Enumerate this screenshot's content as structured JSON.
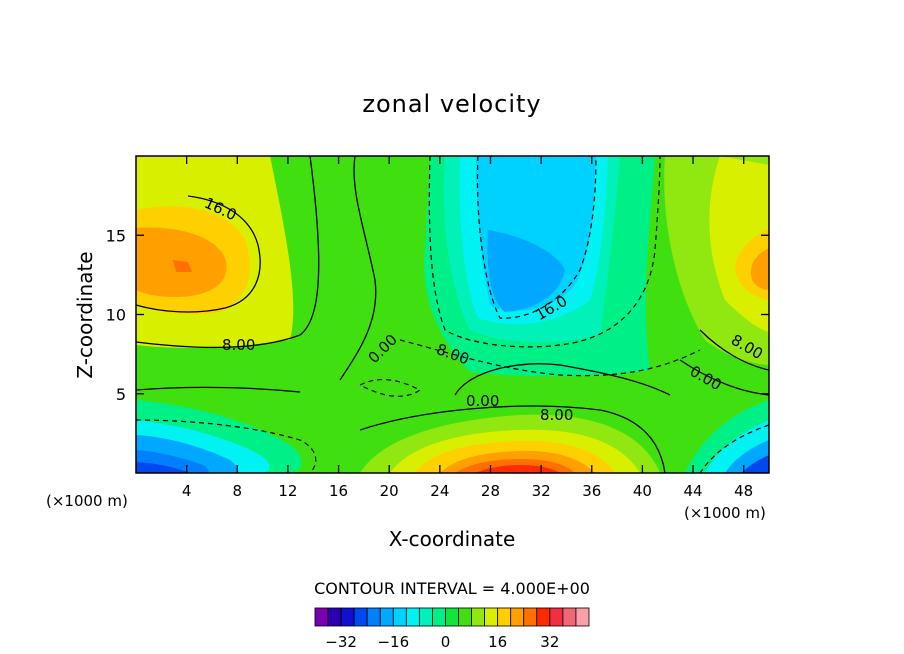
{
  "chart_data": {
    "type": "contour",
    "title": "zonal velocity",
    "xlabel": "X-coordinate",
    "ylabel": "Z-coordinate",
    "x_unit": "(×1000 m)",
    "xlim": [
      0,
      50
    ],
    "ylim": [
      0,
      20
    ],
    "x_ticks": [
      "4",
      "8",
      "12",
      "16",
      "20",
      "24",
      "28",
      "32",
      "36",
      "40",
      "44",
      "48"
    ],
    "y_ticks": [
      "5",
      "10",
      "15"
    ],
    "contour_interval_text": "CONTOUR INTERVAL = 4.000E+00",
    "contour_labels": [
      "16.0",
      "8.00",
      "0.00",
      "8.00",
      "16.0",
      "8.00",
      "0.00",
      "0.00",
      "8.00"
    ],
    "colorbar": {
      "levels": [
        -36,
        -32,
        -28,
        -24,
        -20,
        -16,
        -12,
        -8,
        -4,
        0,
        4,
        8,
        12,
        16,
        20,
        24,
        28,
        32,
        36
      ],
      "colors": [
        "#7a00b4",
        "#2a00b0",
        "#1010d0",
        "#0048f0",
        "#0080ff",
        "#00a8ff",
        "#00d2ff",
        "#00f2f2",
        "#00f2b8",
        "#00f088",
        "#12e43a",
        "#40e010",
        "#90e810",
        "#d8f000",
        "#ffd000",
        "#ffa000",
        "#ff7000",
        "#ff2a00",
        "#f03040",
        "#f06878",
        "#f8a0a8"
      ],
      "tick_labels": [
        "−32",
        "−16",
        "0",
        "16",
        "32"
      ],
      "tick_values": [
        -32,
        -16,
        0,
        16,
        32
      ]
    }
  }
}
